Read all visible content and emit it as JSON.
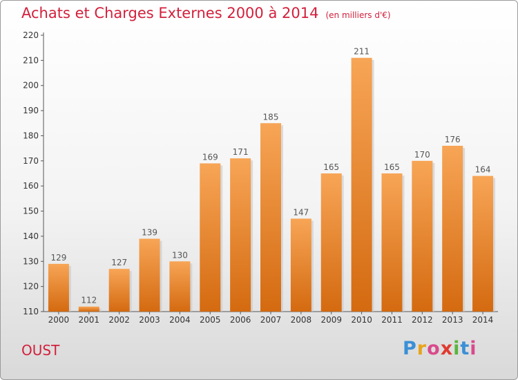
{
  "header": {
    "title": "Achats et Charges Externes 2000 à 2014",
    "unit": "(en milliers d'€)"
  },
  "footer": {
    "commune": "OUST",
    "logo": [
      "P",
      "r",
      "o",
      "x",
      "i",
      "t",
      "i"
    ],
    "logo_colors": [
      "#3b8fd6",
      "#e8a31b",
      "#d94a8c",
      "#e03a2e",
      "#5bb440",
      "#3b8fd6",
      "#d94a8c"
    ]
  },
  "chart_data": {
    "type": "bar",
    "categories": [
      "2000",
      "2001",
      "2002",
      "2003",
      "2004",
      "2005",
      "2006",
      "2007",
      "2008",
      "2009",
      "2010",
      "2011",
      "2012",
      "2013",
      "2014"
    ],
    "values": [
      129,
      112,
      127,
      139,
      130,
      169,
      171,
      185,
      147,
      165,
      211,
      165,
      170,
      176,
      164
    ],
    "ylim": [
      110,
      220
    ],
    "yticks": [
      110,
      120,
      130,
      140,
      150,
      160,
      170,
      180,
      190,
      200,
      210,
      220
    ],
    "bar_color": "#f0882a",
    "grid": false,
    "xlabel": "",
    "ylabel": ""
  }
}
